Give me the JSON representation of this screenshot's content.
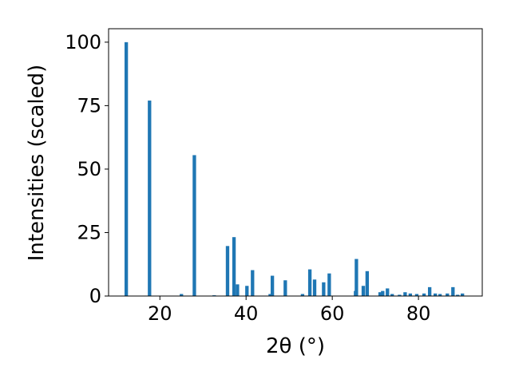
{
  "chart_data": {
    "type": "bar",
    "x_label": "2θ (°)",
    "y_label": "Intensities (scaled)",
    "x": [
      12.2,
      17.6,
      25.0,
      28.0,
      32.6,
      35.7,
      37.2,
      38.0,
      40.2,
      41.5,
      45.6,
      46.1,
      49.1,
      53.1,
      54.8,
      55.9,
      58.0,
      59.3,
      65.4,
      65.6,
      67.2,
      68.1,
      71.1,
      71.7,
      72.8,
      73.9,
      75.6,
      76.9,
      78.1,
      79.6,
      81.3,
      82.6,
      83.9,
      85.0,
      86.7,
      88.0,
      89.1,
      90.2
    ],
    "values": [
      100,
      77,
      0.8,
      55.5,
      0.3,
      19.7,
      23.2,
      4.6,
      4,
      10.2,
      0.8,
      8,
      6.2,
      0.8,
      10.5,
      6.5,
      5.4,
      8.9,
      2,
      14.6,
      4,
      9.8,
      1.5,
      2,
      3,
      0.8,
      0.5,
      1.5,
      1,
      0.8,
      1,
      3.5,
      1,
      0.8,
      1,
      3.5,
      0.5,
      1
    ],
    "bar_width": 0.8,
    "color": "#1f77b4",
    "xlim": [
      8.1,
      94.8
    ],
    "ylim": [
      0,
      105.3
    ],
    "xticks": [
      20,
      40,
      60,
      80
    ],
    "yticks": [
      0,
      25,
      50,
      75,
      100
    ],
    "grid": false
  }
}
